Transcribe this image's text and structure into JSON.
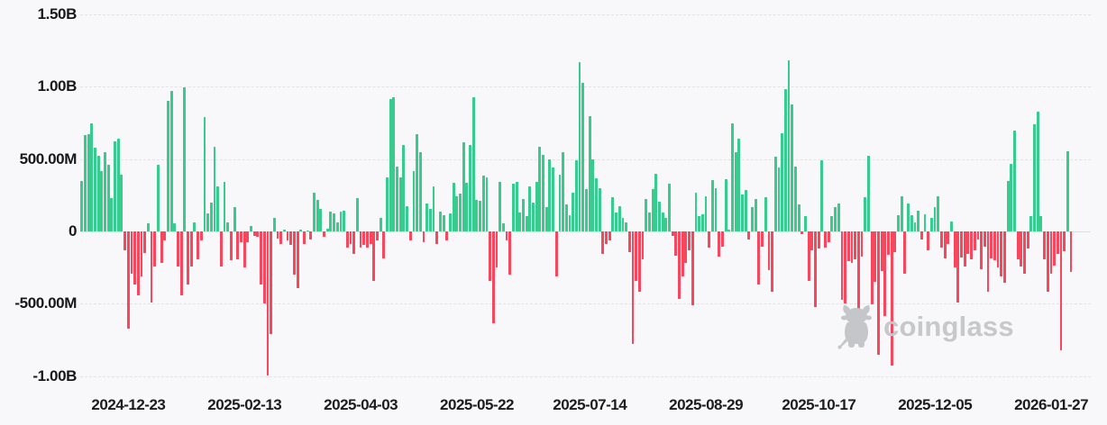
{
  "watermark": {
    "label": "coinglass"
  },
  "chart_data": {
    "type": "bar",
    "title": "",
    "xlabel": "",
    "ylabel": "",
    "grid": "dashed-horizontal",
    "legend": "none",
    "positive_color": "#38cb8e",
    "negative_color": "#f6475d",
    "background_color": "#f8f8fa",
    "values_unit": "millions",
    "ylim_millions": [
      -1077,
      1550
    ],
    "y_ticks": [
      {
        "label": "1.50B",
        "value": 1500
      },
      {
        "label": "1.00B",
        "value": 1000
      },
      {
        "label": "500.00M",
        "value": 500
      },
      {
        "label": "0",
        "value": 0
      },
      {
        "label": "-500.00M",
        "value": -500
      },
      {
        "label": "-1.00B",
        "value": -1000
      }
    ],
    "x_ticks": [
      {
        "label": "2024-12-23",
        "index": 14
      },
      {
        "label": "2025-02-13",
        "index": 49
      },
      {
        "label": "2025-04-03",
        "index": 84
      },
      {
        "label": "2025-05-22",
        "index": 119
      },
      {
        "label": "2025-07-14",
        "index": 153
      },
      {
        "label": "2025-08-29",
        "index": 188
      },
      {
        "label": "2025-10-17",
        "index": 222
      },
      {
        "label": "2025-12-05",
        "index": 257
      },
      {
        "label": "2026-01-27",
        "index": 292
      }
    ],
    "values_millions": [
      350,
      665,
      670,
      745,
      580,
      520,
      420,
      545,
      460,
      230,
      620,
      640,
      390,
      -130,
      -670,
      -290,
      -370,
      -445,
      -310,
      -150,
      55,
      -490,
      -245,
      460,
      -215,
      -60,
      905,
      970,
      55,
      -245,
      -440,
      995,
      -370,
      -245,
      60,
      -190,
      -60,
      790,
      125,
      200,
      585,
      310,
      -240,
      345,
      60,
      -200,
      165,
      -190,
      -75,
      -250,
      -75,
      35,
      -30,
      -40,
      -365,
      -500,
      -995,
      -710,
      95,
      -50,
      -85,
      15,
      -60,
      -95,
      -300,
      -395,
      10,
      -90,
      8,
      -55,
      270,
      220,
      155,
      -35,
      20,
      135,
      125,
      60,
      135,
      145,
      -115,
      -85,
      -155,
      230,
      -115,
      -95,
      -115,
      -85,
      -345,
      -60,
      95,
      -185,
      375,
      915,
      925,
      450,
      375,
      600,
      175,
      -60,
      415,
      675,
      545,
      -75,
      190,
      155,
      310,
      -85,
      135,
      115,
      -60,
      125,
      335,
      240,
      260,
      615,
      335,
      600,
      930,
      220,
      210,
      385,
      375,
      -345,
      -635,
      -250,
      345,
      55,
      -60,
      -300,
      330,
      345,
      130,
      225,
      105,
      310,
      200,
      345,
      585,
      530,
      165,
      495,
      445,
      -310,
      390,
      545,
      185,
      115,
      270,
      490,
      1170,
      1030,
      290,
      795,
      500,
      365,
      300,
      -155,
      -90,
      -60,
      235,
      130,
      175,
      95,
      60,
      -145,
      -780,
      -345,
      -415,
      -190,
      225,
      130,
      290,
      400,
      205,
      130,
      95,
      330,
      -30,
      -170,
      -470,
      -310,
      -220,
      -130,
      -510,
      270,
      105,
      120,
      245,
      -110,
      355,
      300,
      -175,
      -105,
      360,
      15,
      745,
      545,
      640,
      255,
      285,
      -55,
      165,
      225,
      -370,
      -105,
      235,
      -270,
      -415,
      515,
      440,
      680,
      985,
      1185,
      875,
      450,
      185,
      -20,
      105,
      -340,
      -130,
      -520,
      -120,
      490,
      -110,
      -75,
      105,
      170,
      195,
      -475,
      -495,
      -205,
      -215,
      -190,
      -585,
      -175,
      235,
      520,
      -505,
      -350,
      -855,
      -275,
      -585,
      -160,
      -930,
      -145,
      115,
      240,
      -290,
      190,
      110,
      65,
      145,
      -55,
      120,
      -130,
      95,
      170,
      245,
      -115,
      -185,
      -85,
      70,
      -250,
      -490,
      -180,
      -240,
      -155,
      -190,
      -130,
      -55,
      -260,
      -105,
      -420,
      -185,
      -200,
      -250,
      -310,
      -355,
      350,
      465,
      700,
      -195,
      -240,
      -290,
      -120,
      105,
      740,
      825,
      105,
      -190,
      -420,
      -290,
      -235,
      -155,
      -820,
      -140,
      555,
      -280
    ]
  }
}
